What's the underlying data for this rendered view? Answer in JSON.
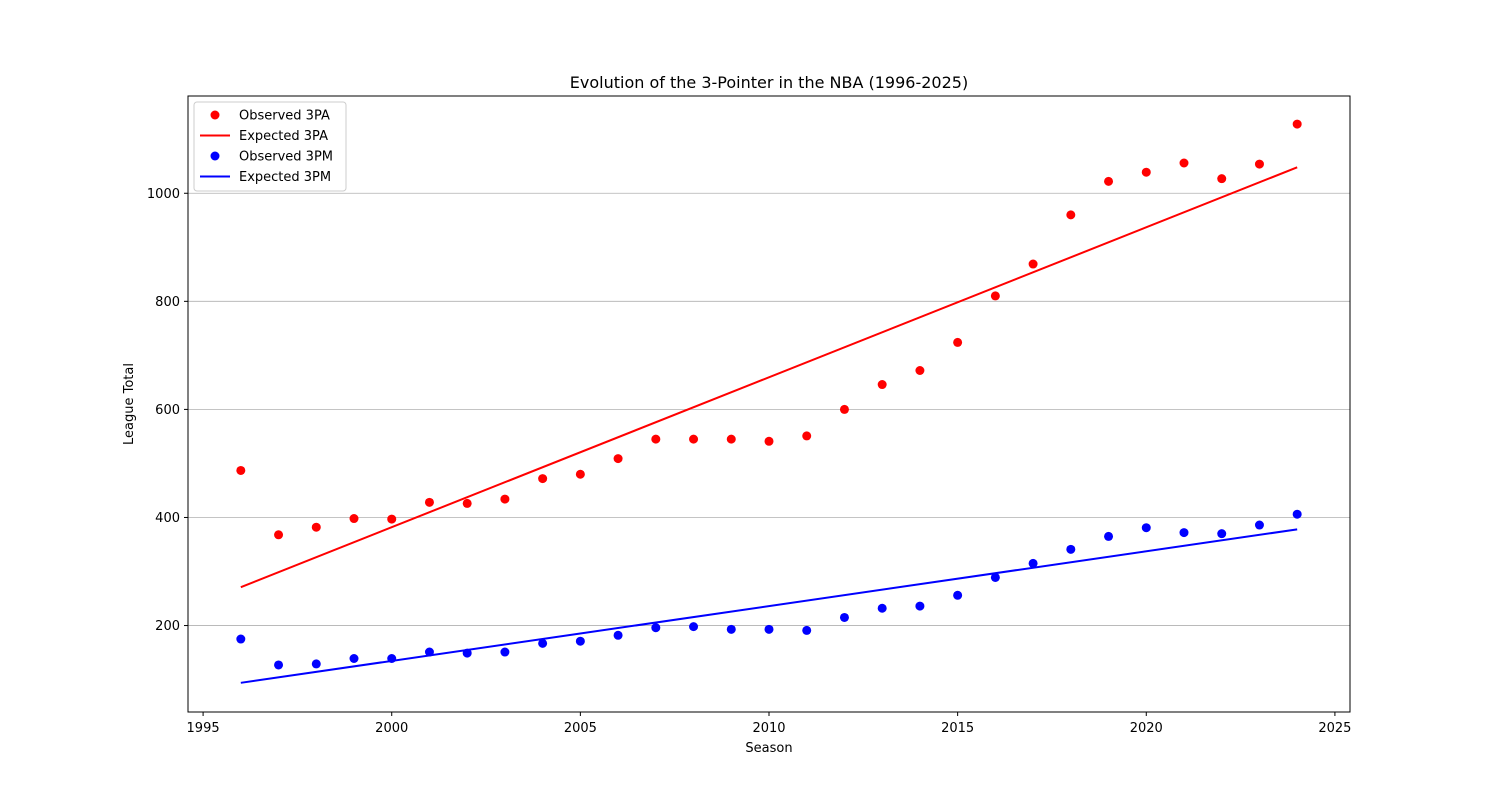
{
  "chart_data": {
    "type": "scatter",
    "title": "Evolution of the 3-Pointer in the NBA (1996-2025)",
    "xlabel": "Season",
    "ylabel": "League Total",
    "xlim": [
      1994.6,
      2025.4
    ],
    "ylim": [
      40,
      1180
    ],
    "xticks": [
      1995,
      2000,
      2005,
      2010,
      2015,
      2020,
      2025
    ],
    "yticks": [
      200,
      400,
      600,
      800,
      1000
    ],
    "grid": "horizontal",
    "legend_position": "top-left",
    "x": [
      1996,
      1997,
      1998,
      1999,
      2000,
      2001,
      2002,
      2003,
      2004,
      2005,
      2006,
      2007,
      2008,
      2009,
      2010,
      2011,
      2012,
      2013,
      2014,
      2015,
      2016,
      2017,
      2018,
      2019,
      2020,
      2021,
      2022,
      2023,
      2024
    ],
    "series": [
      {
        "name": "Observed 3PA",
        "kind": "scatter",
        "color": "#ff0000",
        "values": [
          487,
          368,
          382,
          398,
          397,
          428,
          426,
          434,
          472,
          480,
          509,
          545,
          545,
          545,
          541,
          551,
          600,
          646,
          672,
          724,
          810,
          869,
          960,
          1022,
          1039,
          1056,
          1027,
          1054,
          1128
        ]
      },
      {
        "name": "Expected 3PA",
        "kind": "line",
        "color": "#ff0000",
        "x": [
          1996,
          2024
        ],
        "values": [
          271,
          1048
        ]
      },
      {
        "name": "Observed 3PM",
        "kind": "scatter",
        "color": "#0000ff",
        "values": [
          175,
          127,
          129,
          139,
          139,
          151,
          149,
          151,
          167,
          171,
          182,
          196,
          198,
          193,
          193,
          191,
          215,
          232,
          236,
          256,
          289,
          315,
          341,
          365,
          381,
          372,
          370,
          386,
          406
        ]
      },
      {
        "name": "Expected 3PM",
        "kind": "line",
        "color": "#0000ff",
        "x": [
          1996,
          2024
        ],
        "values": [
          94,
          378
        ]
      }
    ]
  }
}
